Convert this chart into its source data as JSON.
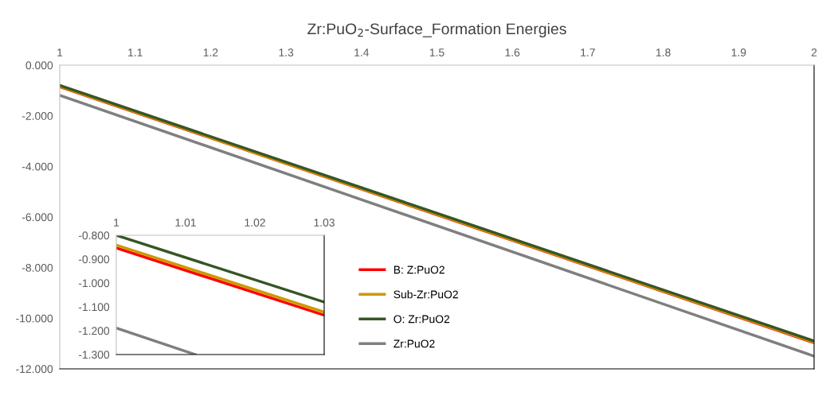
{
  "chart_data": [
    {
      "type": "line",
      "title": "Zr:PuO$_{2}$-Surface_Formation Energies",
      "x": [
        1,
        2
      ],
      "xlim": [
        1,
        2
      ],
      "xticks": [
        1,
        1.1,
        1.2,
        1.3,
        1.4,
        1.5,
        1.6,
        1.7,
        1.8,
        1.9,
        2
      ],
      "ylim": [
        -12,
        0
      ],
      "yticks": [
        {
          "value": 0,
          "label": "0.000"
        },
        {
          "value": -2,
          "label": "-2.000"
        },
        {
          "value": -4,
          "label": "-4.000"
        },
        {
          "value": -6,
          "label": "-6.000"
        },
        {
          "value": -8,
          "label": "-8.000"
        },
        {
          "value": -10,
          "label": "-10.000"
        },
        {
          "value": -12,
          "label": "-12.000"
        }
      ],
      "legend": "bottom left",
      "marker": "none",
      "line_style": "solid",
      "series": [
        {
          "name": "B: Z:PuO2",
          "color": "#ff0000",
          "values": [
            -0.85,
            -10.97
          ]
        },
        {
          "name": "Sub-Zr:PuO2",
          "color": "#cc9900",
          "values": [
            -0.84,
            -10.95
          ]
        },
        {
          "name": "O: Zr:PuO2",
          "color": "#375623",
          "values": [
            -0.8,
            -10.9
          ]
        },
        {
          "name": "Zr:PuO2",
          "color": "#7f7f7f",
          "values": [
            -1.19,
            -11.5
          ]
        }
      ]
    },
    {
      "type": "line",
      "x": [
        1,
        1.03
      ],
      "xlim": [
        1,
        1.03
      ],
      "xticks": [
        1,
        1.01,
        1.02,
        1.03
      ],
      "ylim": [
        -1.3,
        -0.8
      ],
      "yticks": [
        {
          "value": -0.8,
          "label": "-0.800"
        },
        {
          "value": -0.9,
          "label": "-0.900"
        },
        {
          "value": -1.0,
          "label": "-1.000"
        },
        {
          "value": -1.1,
          "label": "-1.100"
        },
        {
          "value": -1.2,
          "label": "-1.200"
        },
        {
          "value": -1.3,
          "label": "-1.300"
        }
      ],
      "marker": "none",
      "line_style": "solid",
      "series": [
        {
          "color": "#ff0000",
          "values": [
            -0.853,
            -1.135
          ]
        },
        {
          "color": "#cc9900",
          "values": [
            -0.841,
            -1.122
          ]
        },
        {
          "color": "#375623",
          "values": [
            -0.8,
            -1.08
          ]
        },
        {
          "color": "#7f7f7f",
          "x": [
            1,
            1.0114
          ],
          "values": [
            -1.189,
            -1.3
          ]
        }
      ]
    }
  ]
}
